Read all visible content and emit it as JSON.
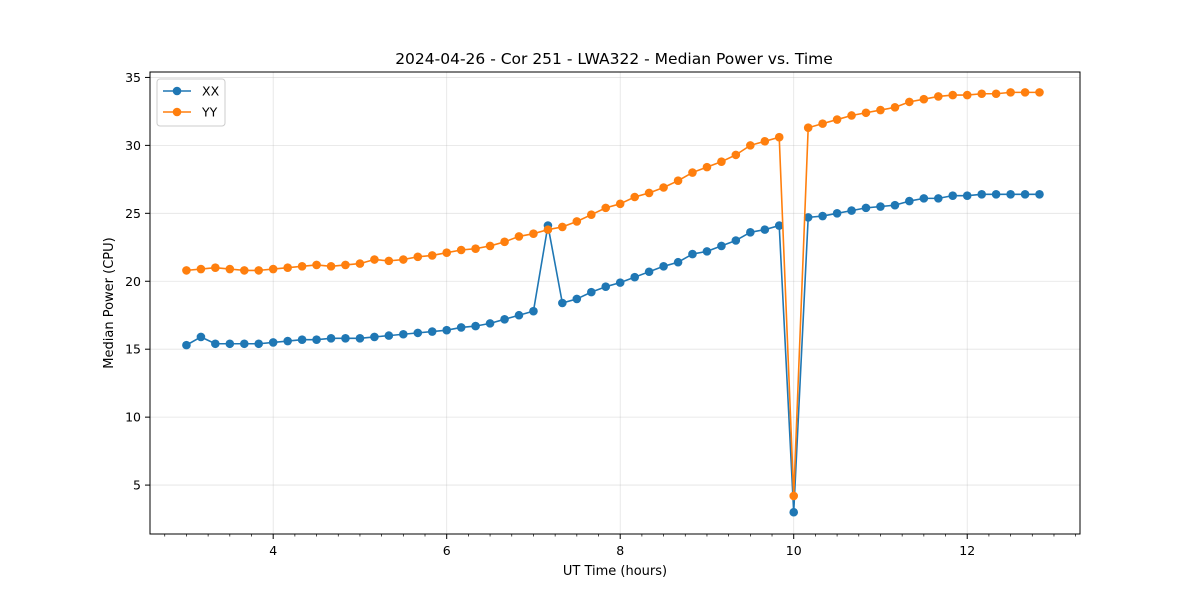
{
  "chart_data": {
    "type": "line",
    "title": "2024-04-26 - Cor 251 - LWA322 - Median Power vs. Time",
    "xlabel": "UT Time (hours)",
    "ylabel": "Median Power (CPU)",
    "xlim": [
      2.58,
      13.3
    ],
    "ylim": [
      1.4,
      35.4
    ],
    "xticks": [
      4,
      6,
      8,
      10,
      12
    ],
    "xtick_labels": [
      "4",
      "6",
      "8",
      "10",
      "12"
    ],
    "yticks": [
      5,
      10,
      15,
      20,
      25,
      30,
      35
    ],
    "ytick_labels": [
      "5",
      "10",
      "15",
      "20",
      "25",
      "30",
      "35"
    ],
    "grid": true,
    "legend_position": "top-left",
    "series": [
      {
        "name": "XX",
        "color": "#1f77b4",
        "x": [
          3.0,
          3.167,
          3.333,
          3.5,
          3.667,
          3.833,
          4.0,
          4.167,
          4.333,
          4.5,
          4.667,
          4.833,
          5.0,
          5.167,
          5.333,
          5.5,
          5.667,
          5.833,
          6.0,
          6.167,
          6.333,
          6.5,
          6.667,
          6.833,
          7.0,
          7.167,
          7.333,
          7.5,
          7.667,
          7.833,
          8.0,
          8.167,
          8.333,
          8.5,
          8.667,
          8.833,
          9.0,
          9.167,
          9.333,
          9.5,
          9.667,
          9.833,
          10.0,
          10.167,
          10.333,
          10.5,
          10.667,
          10.833,
          11.0,
          11.167,
          11.333,
          11.5,
          11.667,
          11.833,
          12.0,
          12.167,
          12.333,
          12.5,
          12.667,
          12.833
        ],
        "y": [
          15.3,
          15.9,
          15.4,
          15.4,
          15.4,
          15.4,
          15.5,
          15.6,
          15.7,
          15.7,
          15.8,
          15.8,
          15.8,
          15.9,
          16.0,
          16.1,
          16.2,
          16.3,
          16.4,
          16.6,
          16.7,
          16.9,
          17.2,
          17.5,
          17.8,
          24.1,
          18.4,
          18.7,
          19.2,
          19.6,
          19.9,
          20.3,
          20.7,
          21.1,
          21.4,
          22.0,
          22.2,
          22.6,
          23.0,
          23.6,
          23.8,
          24.1,
          3.0,
          24.7,
          24.8,
          25.0,
          25.2,
          25.4,
          25.5,
          25.6,
          25.9,
          26.1,
          26.1,
          26.3,
          26.3,
          26.4,
          26.4,
          26.4,
          26.4,
          26.4
        ]
      },
      {
        "name": "YY",
        "color": "#ff7f0e",
        "x": [
          3.0,
          3.167,
          3.333,
          3.5,
          3.667,
          3.833,
          4.0,
          4.167,
          4.333,
          4.5,
          4.667,
          4.833,
          5.0,
          5.167,
          5.333,
          5.5,
          5.667,
          5.833,
          6.0,
          6.167,
          6.333,
          6.5,
          6.667,
          6.833,
          7.0,
          7.167,
          7.333,
          7.5,
          7.667,
          7.833,
          8.0,
          8.167,
          8.333,
          8.5,
          8.667,
          8.833,
          9.0,
          9.167,
          9.333,
          9.5,
          9.667,
          9.833,
          10.0,
          10.167,
          10.333,
          10.5,
          10.667,
          10.833,
          11.0,
          11.167,
          11.333,
          11.5,
          11.667,
          11.833,
          12.0,
          12.167,
          12.333,
          12.5,
          12.667,
          12.833
        ],
        "y": [
          20.8,
          20.9,
          21.0,
          20.9,
          20.8,
          20.8,
          20.9,
          21.0,
          21.1,
          21.2,
          21.1,
          21.2,
          21.3,
          21.6,
          21.5,
          21.6,
          21.8,
          21.9,
          22.1,
          22.3,
          22.4,
          22.6,
          22.9,
          23.3,
          23.5,
          23.8,
          24.0,
          24.4,
          24.9,
          25.4,
          25.7,
          26.2,
          26.5,
          26.9,
          27.4,
          28.0,
          28.4,
          28.8,
          29.3,
          30.0,
          30.3,
          30.6,
          4.2,
          31.3,
          31.6,
          31.9,
          32.2,
          32.4,
          32.6,
          32.8,
          33.2,
          33.4,
          33.6,
          33.7,
          33.7,
          33.8,
          33.8,
          33.9,
          33.9,
          33.9
        ]
      }
    ]
  }
}
